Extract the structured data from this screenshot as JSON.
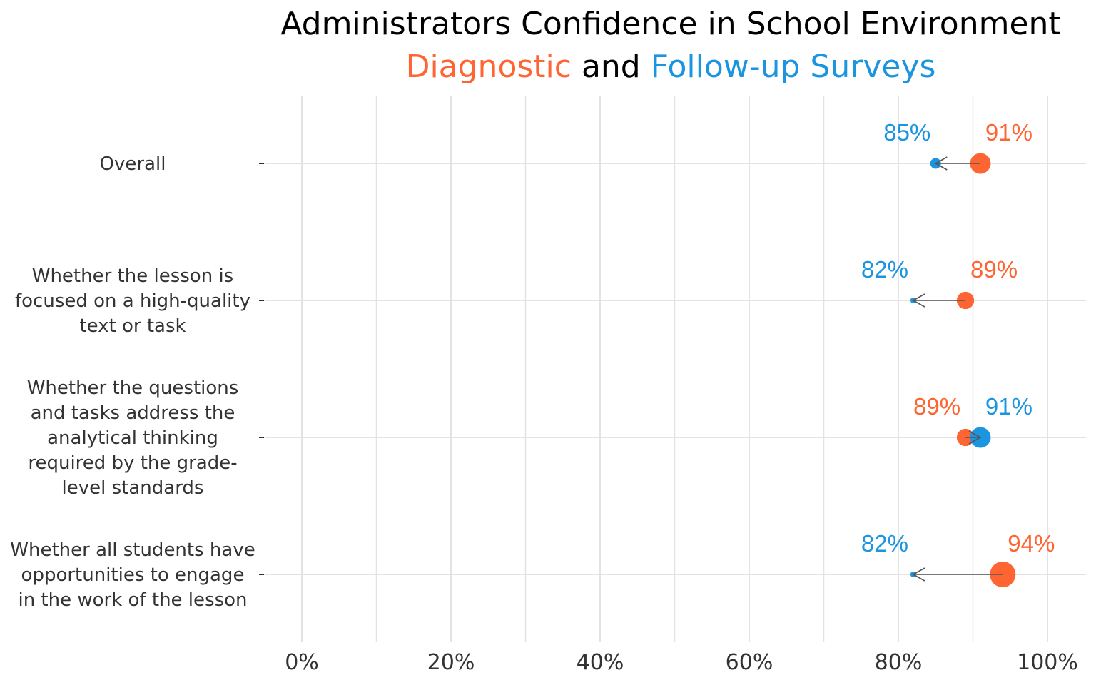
{
  "title": {
    "line1": "Administrators Confidence in School Environment",
    "line2_part1": "Diagnostic",
    "line2_part2": " and ",
    "line2_part3": "Follow-up Surveys"
  },
  "colors": {
    "diagnostic": "#ff6433",
    "followup": "#1b95e0",
    "grid": "#e3e3e3",
    "arrow": "#555555",
    "label_text": "#333333"
  },
  "chart_data": {
    "type": "dumbbell",
    "x_tick_labels": [
      "0%",
      "20%",
      "40%",
      "60%",
      "80%",
      "100%"
    ],
    "xlim": [
      0,
      100
    ],
    "grid": true,
    "categories": [
      [
        "Overall"
      ],
      [
        "Whether the lesson is",
        "focused on a high-quality",
        "text or task"
      ],
      [
        "Whether the questions",
        "and tasks address the",
        "analytical thinking",
        "required by the grade-",
        "level standards"
      ],
      [
        "Whether all students have",
        "opportunities to engage",
        "in the work of the lesson"
      ]
    ],
    "series": [
      {
        "name": "Diagnostic",
        "values": [
          91,
          89,
          89,
          94
        ],
        "labels": [
          "91%",
          "89%",
          "89%",
          "94%"
        ]
      },
      {
        "name": "Follow-up Surveys",
        "values": [
          85,
          82,
          91,
          82
        ],
        "labels": [
          "85%",
          "82%",
          "91%",
          "82%"
        ]
      }
    ]
  }
}
